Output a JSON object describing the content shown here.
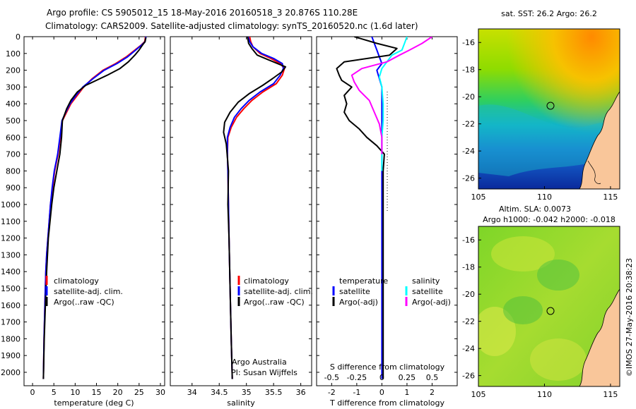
{
  "header": {
    "line1": "Argo profile: CS 5905012_15 18-May-2016 20160518_3 20.876S 110.28E",
    "line2": "Climatology: CARS2009. Satellite-adjusted climatology: synTS_20160520.nc (1.6d later)"
  },
  "colors": {
    "climatology": "#ff0000",
    "satellite": "#0000ff",
    "argo": "#000000",
    "salinity_satellite": "#00ffff",
    "salinity_argo": "#ff00ff",
    "land": "#f9c69a"
  },
  "depth_ticks": [
    0,
    100,
    200,
    300,
    400,
    500,
    600,
    700,
    800,
    900,
    1000,
    1100,
    1200,
    1300,
    1400,
    1500,
    1600,
    1700,
    1800,
    1900,
    2000
  ],
  "chart_data": [
    {
      "type": "line",
      "xlabel": "temperature (deg C)",
      "xlim": [
        -2,
        31
      ],
      "ylim": [
        2080,
        0
      ],
      "xticks": [
        0,
        5,
        10,
        15,
        20,
        25,
        30
      ],
      "legend": {
        "placement": "bottom-left",
        "entries": [
          "climatology",
          "satellite-adj. clim.",
          "Argo(..raw -QC)"
        ]
      },
      "series": [
        {
          "name": "climatology",
          "color": "#ff0000",
          "x": [
            26.5,
            26.3,
            25.5,
            24,
            22,
            19.5,
            16.5,
            14,
            12,
            10.5,
            9,
            8,
            7,
            6.5,
            6,
            5.2,
            4.7,
            4.2,
            3.9,
            3.6,
            3.3,
            3.1,
            2.9,
            2.7,
            2.55
          ],
          "y": [
            0,
            30,
            50,
            80,
            120,
            160,
            200,
            250,
            300,
            350,
            400,
            450,
            500,
            600,
            700,
            800,
            900,
            1000,
            1100,
            1200,
            1300,
            1400,
            1600,
            1800,
            2040
          ]
        },
        {
          "name": "satellite-adj. clim.",
          "color": "#0000ff",
          "x": [
            26.6,
            26.4,
            25.6,
            24.2,
            22.3,
            19.8,
            16.8,
            14.2,
            11.8,
            10.2,
            8.8,
            7.8,
            6.9,
            6.4,
            5.9,
            5.1,
            4.6,
            4.2,
            3.9,
            3.6,
            3.3,
            3.1,
            2.9,
            2.7,
            2.55
          ],
          "y": [
            0,
            30,
            50,
            80,
            120,
            160,
            200,
            250,
            300,
            350,
            400,
            450,
            500,
            600,
            700,
            800,
            900,
            1000,
            1100,
            1200,
            1300,
            1400,
            1600,
            1800,
            2040
          ]
        },
        {
          "name": "Argo(..raw -QC)",
          "color": "#000000",
          "x": [
            26.6,
            26.4,
            25.8,
            25,
            24,
            22.5,
            20.5,
            17.5,
            15,
            12.5,
            10.5,
            9,
            8,
            7,
            6.8,
            6.4,
            5.7,
            5,
            4.5,
            4.1,
            3.7,
            3.3,
            3.0,
            2.75,
            2.55
          ],
          "y": [
            5,
            30,
            50,
            80,
            110,
            150,
            190,
            230,
            260,
            290,
            330,
            380,
            430,
            500,
            600,
            700,
            800,
            900,
            1000,
            1100,
            1200,
            1400,
            1600,
            1800,
            2040
          ]
        }
      ]
    },
    {
      "type": "line",
      "xlabel": "salinity",
      "xlim": [
        33.6,
        36.2
      ],
      "ylim": [
        2080,
        0
      ],
      "xticks": [
        34,
        34.5,
        35,
        35.5,
        36
      ],
      "xtick_labels": [
        "34",
        "34.5",
        "35",
        "35.5",
        "36"
      ],
      "legend": {
        "placement": "bottom-left",
        "entries": [
          "climatology",
          "satellite-adj. clim.",
          "Argo(..raw -QC)"
        ]
      },
      "annotation": [
        "Argo Australia",
        "PI: Susan Wijffels"
      ],
      "series": [
        {
          "name": "climatology",
          "color": "#ff0000",
          "x": [
            35.06,
            35.08,
            35.12,
            35.25,
            35.45,
            35.62,
            35.7,
            35.66,
            35.55,
            35.3,
            35.1,
            34.95,
            34.82,
            34.72,
            34.66,
            34.65,
            34.66,
            34.67,
            34.68,
            34.7,
            34.72,
            34.74
          ],
          "y": [
            0,
            30,
            60,
            100,
            130,
            160,
            190,
            230,
            280,
            330,
            380,
            430,
            480,
            540,
            600,
            700,
            800,
            1000,
            1200,
            1500,
            1800,
            2040
          ]
        },
        {
          "name": "satellite-adj. clim.",
          "color": "#0000ff",
          "x": [
            35.03,
            35.06,
            35.12,
            35.28,
            35.5,
            35.66,
            35.68,
            35.62,
            35.5,
            35.25,
            35.05,
            34.9,
            34.78,
            34.7,
            34.65,
            34.65,
            34.66,
            34.67,
            34.68,
            34.7,
            34.72,
            34.74
          ],
          "y": [
            0,
            30,
            60,
            100,
            130,
            160,
            190,
            230,
            280,
            330,
            380,
            430,
            480,
            540,
            600,
            700,
            800,
            1000,
            1200,
            1500,
            1800,
            2040
          ]
        },
        {
          "name": "Argo(..raw -QC)",
          "color": "#000000",
          "x": [
            35.02,
            35.04,
            35.1,
            35.2,
            35.42,
            35.72,
            35.65,
            35.48,
            35.3,
            35.05,
            34.85,
            34.7,
            34.6,
            34.58,
            34.63,
            34.65,
            34.67,
            34.66,
            34.68,
            34.7,
            34.72,
            34.74
          ],
          "y": [
            0,
            40,
            70,
            110,
            140,
            180,
            210,
            250,
            290,
            340,
            390,
            450,
            510,
            570,
            640,
            720,
            800,
            1000,
            1200,
            1500,
            1800,
            2040
          ]
        }
      ]
    },
    {
      "type": "line",
      "xlabel": "T difference from climatology",
      "x2label": "S difference from climatology",
      "xlim": [
        -2.6,
        3.0
      ],
      "ylim": [
        2080,
        0
      ],
      "xticks": [
        -2,
        -1,
        0,
        1,
        2
      ],
      "x2ticks": [
        -0.5,
        -0.25,
        0,
        0.25,
        0.5
      ],
      "x2tick_labels": [
        "-0.5",
        "-0.25",
        "0",
        "0.25",
        "0.5"
      ],
      "x2_scale": "0.25 salinity per 1 deg C",
      "legend": {
        "placement": "bottom",
        "temperature_title": "temperature",
        "salinity_title": "salinity",
        "temperature_entries": [
          "satellite",
          "Argo(-adj)"
        ],
        "salinity_entries": [
          "satellite",
          "Argo(-adj)"
        ]
      },
      "series": [
        {
          "name": "temperature satellite",
          "color": "#0000ff",
          "x": [
            -0.4,
            -0.3,
            -0.2,
            -0.1,
            0,
            -0.2,
            -0.1,
            0,
            0,
            0,
            0,
            0,
            0,
            0,
            0
          ],
          "y": [
            0,
            40,
            80,
            120,
            160,
            200,
            250,
            300,
            400,
            500,
            600,
            800,
            1200,
            1600,
            2040
          ]
        },
        {
          "name": "temperature Argo(-adj)",
          "color": "#000000",
          "x": [
            -1.1,
            -0.2,
            0.6,
            0.3,
            -1.5,
            -1.8,
            -1.7,
            -1.6,
            -1.2,
            -1.5,
            -1.4,
            -1.5,
            -1.3,
            -0.9,
            -0.6,
            -0.2,
            0.1,
            0.05,
            0.05,
            0.05,
            0.05,
            0.05
          ],
          "y": [
            0,
            40,
            70,
            110,
            150,
            190,
            230,
            260,
            300,
            350,
            400,
            450,
            500,
            550,
            600,
            650,
            700,
            800,
            1000,
            1400,
            1800,
            2040
          ]
        },
        {
          "name": "salinity satellite",
          "color": "#00ffff",
          "x": [
            1.0,
            0.9,
            0.8,
            0.4,
            0.2,
            0,
            -0.1,
            0,
            0.05,
            0.05,
            0,
            0,
            0
          ],
          "y": [
            0,
            40,
            80,
            110,
            150,
            190,
            240,
            300,
            400,
            500,
            600,
            700,
            800
          ]
        },
        {
          "name": "salinity Argo(-adj)",
          "color": "#ff00ff",
          "x": [
            2.0,
            1.6,
            1.1,
            0.7,
            0.2,
            -0.8,
            -1.2,
            -1.1,
            -0.9,
            -0.5,
            -0.3,
            -0.1,
            0,
            0
          ],
          "y": [
            0,
            40,
            80,
            110,
            150,
            190,
            230,
            270,
            320,
            380,
            450,
            520,
            600,
            700
          ]
        }
      ]
    },
    {
      "type": "heatmap",
      "title": "sat. SST: 26.2  Argo: 26.2",
      "xlim": [
        105,
        115.7
      ],
      "ylim": [
        -26.8,
        -15
      ],
      "xticks": [
        105,
        110,
        115
      ],
      "yticks": [
        -16,
        -18,
        -20,
        -22,
        -24,
        -26
      ],
      "marker": {
        "lon": 110.28,
        "lat": -20.876
      }
    },
    {
      "type": "heatmap",
      "title": [
        "Altim. SLA: 0.0073",
        "Argo h1000: -0.042  h2000: -0.018"
      ],
      "xlim": [
        105,
        115.7
      ],
      "ylim": [
        -26.8,
        -15
      ],
      "xticks": [
        105,
        110,
        115
      ],
      "yticks": [
        -16,
        -18,
        -20,
        -22,
        -24,
        -26
      ],
      "marker": {
        "lon": 110.28,
        "lat": -20.876
      }
    }
  ],
  "credit": "©IMOS 27-May-2016 20:38:23"
}
